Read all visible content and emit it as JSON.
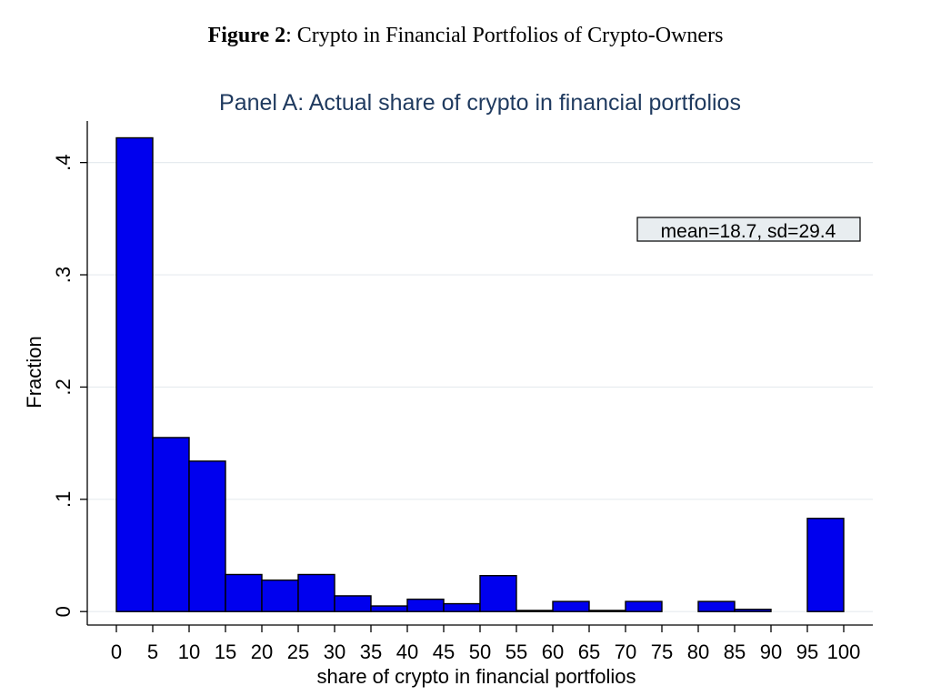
{
  "figure": {
    "label": "Figure 2",
    "caption": ": Crypto in Financial Portfolios of Crypto-Owners"
  },
  "chart_data": {
    "type": "bar",
    "title": "Panel A: Actual share of crypto in financial portfolios",
    "xlabel": "share of crypto in financial portfolios",
    "ylabel": "Fraction",
    "bin_edges": [
      0,
      5,
      10,
      15,
      20,
      25,
      30,
      35,
      40,
      45,
      50,
      55,
      60,
      65,
      70,
      75,
      80,
      85,
      90,
      95,
      100
    ],
    "values": [
      0.422,
      0.155,
      0.134,
      0.033,
      0.028,
      0.033,
      0.014,
      0.005,
      0.011,
      0.007,
      0.032,
      0.001,
      0.009,
      0.001,
      0.009,
      0.0,
      0.009,
      0.002,
      0.0,
      0.083
    ],
    "xticks": [
      "0",
      "5",
      "10",
      "15",
      "20",
      "25",
      "30",
      "35",
      "40",
      "45",
      "50",
      "55",
      "60",
      "65",
      "70",
      "75",
      "80",
      "85",
      "90",
      "95",
      "100"
    ],
    "yticks": [
      {
        "value": 0,
        "label": "0"
      },
      {
        "value": 0.1,
        "label": ".1"
      },
      {
        "value": 0.2,
        "label": ".2"
      },
      {
        "value": 0.3,
        "label": ".3"
      },
      {
        "value": 0.4,
        "label": ".4"
      }
    ],
    "xlim": [
      -4,
      104
    ],
    "ylim": [
      -0.012,
      0.437
    ],
    "annotation": "mean=18.7, sd=29.4",
    "grid": true,
    "bar_color": "#0000ee",
    "title_color": "#1f3a5f",
    "grid_color": "#e6ebef",
    "annotation_bg": "#e8edf0"
  }
}
